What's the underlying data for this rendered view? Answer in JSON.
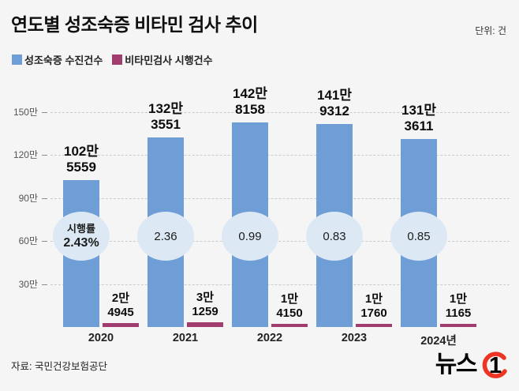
{
  "header": {
    "title": "연도별 성조숙증 비타민 검사 추이",
    "unit": "단위: 건"
  },
  "legend": [
    {
      "label": "성조숙증 수진건수",
      "color": "#6f9ed6"
    },
    {
      "label": "비타민검사 시행건수",
      "color": "#a03d6e"
    }
  ],
  "footer": {
    "source": "자료: 국민건강보험공단",
    "logo_text": "뉴스",
    "logo_digit": "1"
  },
  "chart_data": {
    "type": "bar",
    "title": "연도별 성조숙증 비타민 검사 추이",
    "unit": "건",
    "categories": [
      "2020",
      "2021",
      "2022",
      "2023",
      "2024년"
    ],
    "series": [
      {
        "name": "성조숙증 수진건수",
        "color": "#6f9ed6",
        "values": [
          1025559,
          1323551,
          1428158,
          1419312,
          1313611
        ],
        "value_labels": [
          [
            "102만",
            "5559"
          ],
          [
            "132만",
            "3551"
          ],
          [
            "142만",
            "8158"
          ],
          [
            "141만",
            "9312"
          ],
          [
            "131만",
            "3611"
          ]
        ]
      },
      {
        "name": "비타민검사 시행건수",
        "color": "#a03d6e",
        "values": [
          24945,
          31259,
          14150,
          11760,
          11165
        ],
        "value_labels": [
          [
            "2만",
            "4945"
          ],
          [
            "3만",
            "1259"
          ],
          [
            "1만",
            "4150"
          ],
          [
            "1만",
            "1760"
          ],
          [
            "1만",
            "1165"
          ]
        ]
      }
    ],
    "rate_label": "시행률",
    "rates": [
      "2.43%",
      "2.36",
      "0.99",
      "0.83",
      "0.85"
    ],
    "yticks": {
      "labels": [
        "150만",
        "120만",
        "90만",
        "60만",
        "30만"
      ],
      "values": [
        1500000,
        1200000,
        900000,
        600000,
        300000
      ]
    },
    "ylim": [
      0,
      1500000
    ],
    "grid": "dashed-horizontal",
    "legend_position": "top-left",
    "bubble_color": "#dce9f5"
  }
}
